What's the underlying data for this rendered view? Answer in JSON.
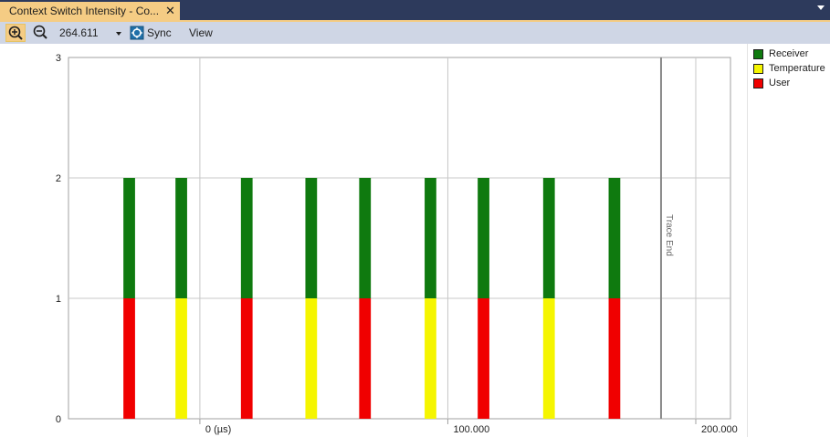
{
  "tab": {
    "title": "Context Switch Intensity - Co...",
    "close": "✕"
  },
  "toolbar": {
    "zoom_value": "264.611",
    "sync_label": "Sync",
    "view_label": "View"
  },
  "colors": {
    "receiver": "#0f7a0f",
    "temperature": "#f5f500",
    "user": "#f00000"
  },
  "chart_data": {
    "type": "bar",
    "stacked": true,
    "title": "",
    "xlabel": "",
    "ylabel": "",
    "ylim": [
      0,
      3
    ],
    "xlim": [
      -53000,
      214000
    ],
    "y_ticks": [
      "0",
      "1",
      "2",
      "3"
    ],
    "x_ticks": [
      {
        "value": 0,
        "label": "0 (µs)"
      },
      {
        "value": 100000,
        "label": "100.000"
      },
      {
        "value": 200000,
        "label": "200.000"
      }
    ],
    "grid": true,
    "legend_position": "right",
    "series": [
      {
        "name": "User",
        "values": [
          1,
          0,
          1,
          0,
          1,
          0,
          1,
          0,
          1
        ],
        "color": "#f00000"
      },
      {
        "name": "Temperature",
        "values": [
          0,
          1,
          0,
          1,
          0,
          1,
          0,
          1,
          0
        ],
        "color": "#f5f500"
      },
      {
        "name": "Receiver",
        "values": [
          1,
          1,
          1,
          1,
          1,
          1,
          1,
          1,
          1
        ],
        "color": "#0f7a0f"
      }
    ],
    "x": [
      -28500,
      -7500,
      18900,
      44900,
      66600,
      93000,
      114400,
      140800,
      167200
    ],
    "bar_width_us": 4700,
    "annotations": [
      {
        "value": 186000,
        "label": "Trace End"
      }
    ]
  },
  "legend": {
    "items": [
      {
        "name": "Receiver",
        "color": "#0f7a0f"
      },
      {
        "name": "Temperature",
        "color": "#f5f500"
      },
      {
        "name": "User",
        "color": "#f00000"
      }
    ]
  }
}
